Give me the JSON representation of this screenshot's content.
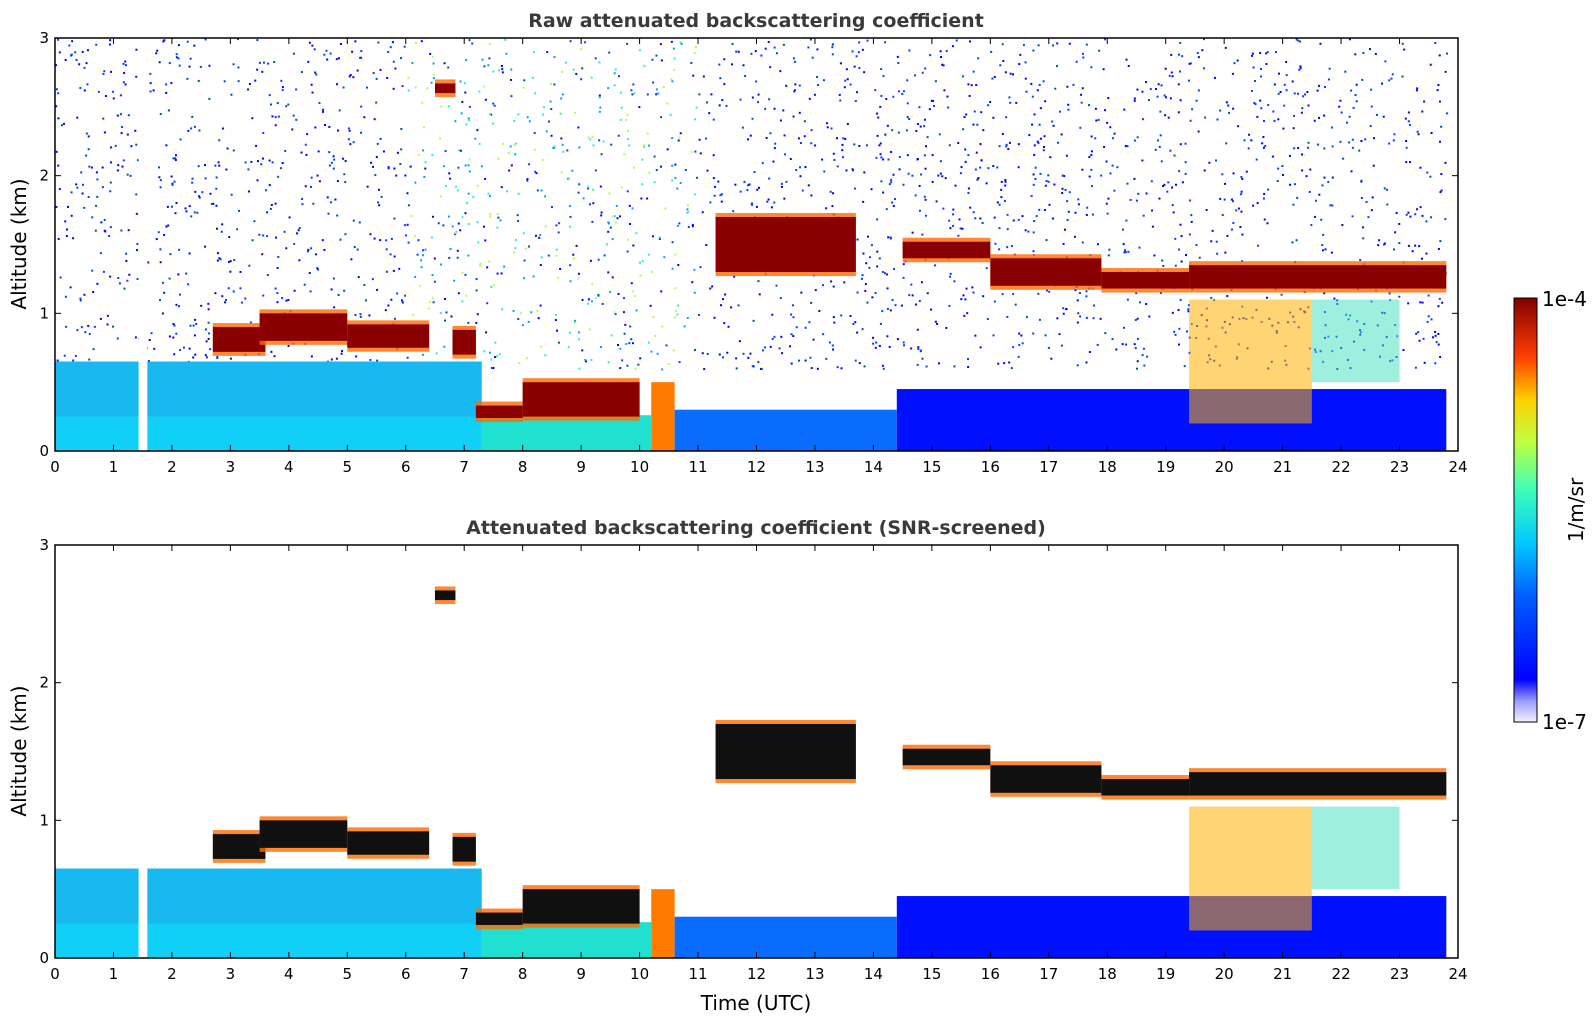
{
  "chart_data": [
    {
      "type": "heatmap",
      "title": "Raw attenuated backscattering coefficient",
      "xlabel": "",
      "ylabel": "Altitude (km)",
      "xlim": [
        0,
        24
      ],
      "ylim": [
        0,
        3
      ],
      "xticks": [
        "0",
        "1",
        "2",
        "3",
        "4",
        "5",
        "6",
        "7",
        "8",
        "9",
        "10",
        "11",
        "12",
        "13",
        "14",
        "15",
        "16",
        "17",
        "18",
        "19",
        "20",
        "21",
        "22",
        "23",
        "24"
      ],
      "yticks": [
        "0",
        "1",
        "2",
        "3"
      ],
      "data_gap_hours": [
        1.43,
        1.58
      ],
      "cloud_layers": [
        {
          "x": [
            2.7,
            3.6
          ],
          "y": [
            0.72,
            0.9
          ]
        },
        {
          "x": [
            3.5,
            5.0
          ],
          "y": [
            0.8,
            1.0
          ]
        },
        {
          "x": [
            5.0,
            6.4
          ],
          "y": [
            0.75,
            0.92
          ]
        },
        {
          "x": [
            6.8,
            7.2
          ],
          "y": [
            0.7,
            0.88
          ]
        },
        {
          "x": [
            7.2,
            8.0
          ],
          "y": [
            0.24,
            0.33
          ]
        },
        {
          "x": [
            8.0,
            10.0
          ],
          "y": [
            0.25,
            0.5
          ]
        },
        {
          "x": [
            6.5,
            6.85
          ],
          "y": [
            2.6,
            2.67
          ]
        },
        {
          "x": [
            11.3,
            13.7
          ],
          "y": [
            1.3,
            1.7
          ]
        },
        {
          "x": [
            14.5,
            16.0
          ],
          "y": [
            1.4,
            1.52
          ]
        },
        {
          "x": [
            16.0,
            17.9
          ],
          "y": [
            1.2,
            1.4
          ]
        },
        {
          "x": [
            17.9,
            19.4
          ],
          "y": [
            1.18,
            1.3
          ]
        },
        {
          "x": [
            19.4,
            23.8
          ],
          "y": [
            1.18,
            1.35
          ]
        }
      ],
      "colorbar": {
        "label": "1/m/sr",
        "min_label": "1e-7",
        "max_label": "1e-4",
        "scale": "log"
      }
    },
    {
      "type": "heatmap",
      "title": "Attenuated backscattering coefficient (SNR-screened)",
      "xlabel": "Time (UTC)",
      "ylabel": "Altitude (km)",
      "xlim": [
        0,
        24
      ],
      "ylim": [
        0,
        3
      ],
      "xticks": [
        "0",
        "1",
        "2",
        "3",
        "4",
        "5",
        "6",
        "7",
        "8",
        "9",
        "10",
        "11",
        "12",
        "13",
        "14",
        "15",
        "16",
        "17",
        "18",
        "19",
        "20",
        "21",
        "22",
        "23",
        "24"
      ],
      "yticks": [
        "0",
        "1",
        "2",
        "3"
      ],
      "colorbar": {
        "label": "1/m/sr",
        "min_label": "1e-7",
        "max_label": "1e-4",
        "scale": "log"
      }
    }
  ]
}
